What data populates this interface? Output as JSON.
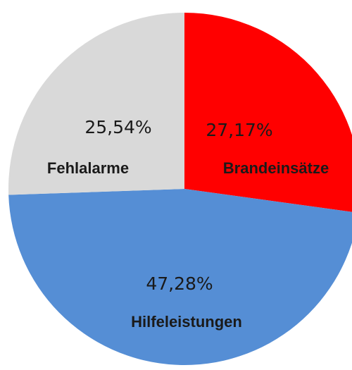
{
  "chart_data": {
    "type": "pie",
    "categories": [
      "Brandeinsätze",
      "Hilfeleistungen",
      "Fehlalarme"
    ],
    "values": [
      27.17,
      47.28,
      25.54
    ],
    "value_labels": [
      "27,17%",
      "47,28%",
      "25,54%"
    ],
    "colors": [
      "#ff0000",
      "#558ed5",
      "#d9d9d9"
    ]
  }
}
